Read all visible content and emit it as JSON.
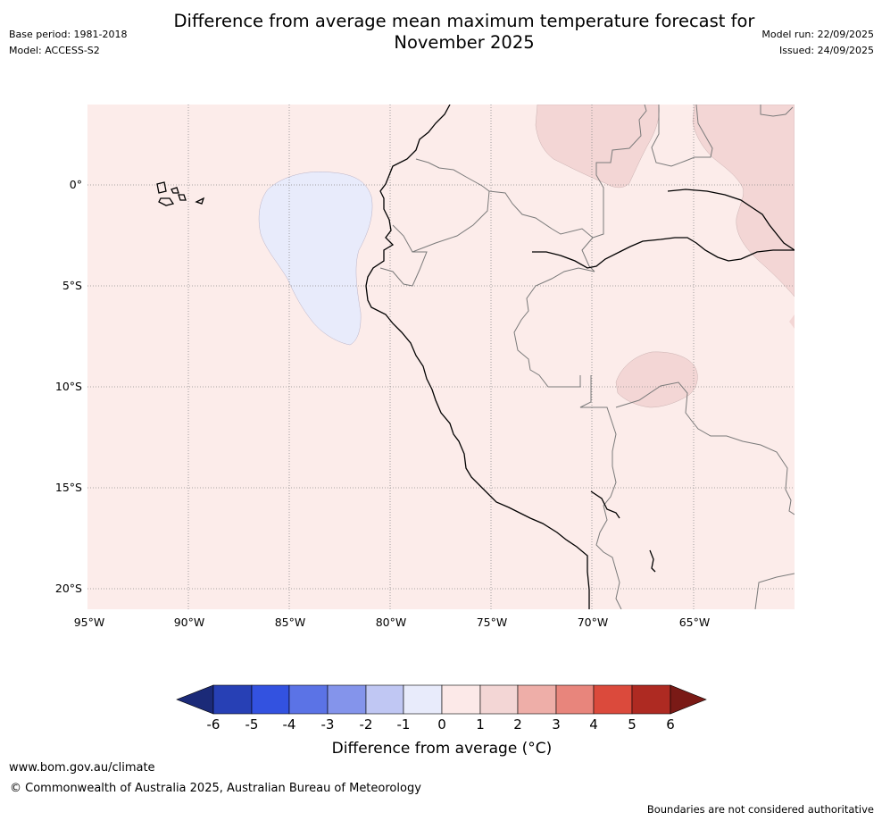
{
  "title": "Difference from average mean maximum temperature forecast for November 2025",
  "title_line1": "Difference from average mean maximum temperature forecast for",
  "title_line2": "November 2025",
  "meta_left": {
    "base_period": "Base period: 1981-2018",
    "model": "Model: ACCESS-S2"
  },
  "meta_right": {
    "model_run": "Model run: 22/09/2025",
    "issued": "Issued: 24/09/2025"
  },
  "map": {
    "lat_labels": [
      "0°",
      "5°S",
      "10°S",
      "15°S",
      "20°S"
    ],
    "lon_labels": [
      "95°W",
      "90°W",
      "85°W",
      "80°W",
      "75°W",
      "70°W",
      "65°W"
    ],
    "extent": {
      "lon_min": -95,
      "lon_max": -60,
      "lat_min": -21,
      "lat_max": 4
    },
    "dominant_anomaly_bin": "0 to 1",
    "anomaly_regions": [
      {
        "name": "ocean-cool-patch",
        "bin": "-1 to 0"
      },
      {
        "name": "northeast-warm-patch",
        "bin": "1 to 2"
      },
      {
        "name": "amazon-east-warm-patch",
        "bin": "1 to 2"
      },
      {
        "name": "bolivia-warm-patch",
        "bin": "1 to 2"
      }
    ]
  },
  "colorbar": {
    "ticks": [
      "-6",
      "-5",
      "-4",
      "-3",
      "-2",
      "-1",
      "0",
      "1",
      "2",
      "3",
      "4",
      "5",
      "6"
    ],
    "colors": [
      "#1b2a78",
      "#2740b5",
      "#3352e0",
      "#5b73e6",
      "#8494eb",
      "#c0c7f3",
      "#e8ebfb",
      "#fce9e8",
      "#f3d6d5",
      "#eeaea8",
      "#e8857c",
      "#db4a3c",
      "#ae2a22",
      "#7a1a16"
    ],
    "title": "Difference from average (°C)"
  },
  "footer": {
    "url": "www.bom.gov.au/climate",
    "copyright": "© Commonwealth of Australia 2025, Australian Bureau of Meteorology",
    "note": "Boundaries are not considered authoritative"
  }
}
